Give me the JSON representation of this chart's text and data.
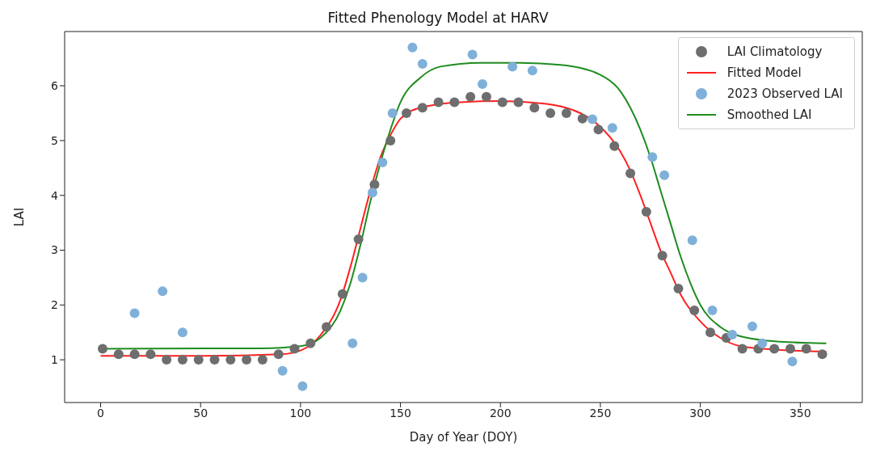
{
  "chart_data": {
    "type": "scatter",
    "title": "Fitted Phenology Model at HARV",
    "xlabel": "Day of Year (DOY)",
    "ylabel": "LAI",
    "xlim": [
      -18,
      381
    ],
    "xticks": [
      0,
      50,
      100,
      150,
      200,
      250,
      300,
      350
    ],
    "ylim": [
      0.22,
      6.99
    ],
    "yticks": [
      1,
      2,
      3,
      4,
      5,
      6
    ],
    "grid": false,
    "legend": "top right",
    "series": [
      {
        "name": "LAI Climatology",
        "marker": "circle",
        "color": "#6e6e6e",
        "x": [
          1,
          9,
          17,
          25,
          33,
          41,
          49,
          57,
          65,
          73,
          81,
          89,
          97,
          105,
          113,
          121,
          129,
          137,
          145,
          153,
          161,
          169,
          177,
          185,
          193,
          201,
          209,
          217,
          225,
          233,
          241,
          249,
          257,
          265,
          273,
          281,
          289,
          297,
          305,
          313,
          321,
          329,
          337,
          345,
          353,
          361
        ],
        "values": [
          1.2,
          1.1,
          1.1,
          1.1,
          1.0,
          1.0,
          1.0,
          1.0,
          1.0,
          1.0,
          1.0,
          1.1,
          1.2,
          1.3,
          1.6,
          2.2,
          3.2,
          4.2,
          5.0,
          5.5,
          5.6,
          5.7,
          5.7,
          5.8,
          5.8,
          5.7,
          5.7,
          5.6,
          5.5,
          5.5,
          5.4,
          5.2,
          4.9,
          4.4,
          3.7,
          2.9,
          2.3,
          1.9,
          1.5,
          1.4,
          1.2,
          1.2,
          1.2,
          1.2,
          1.2,
          1.1
        ]
      },
      {
        "name": "Fitted Model",
        "type": "line",
        "marker": "none",
        "color": "#ff2020",
        "x": [
          0,
          50,
          90,
          100,
          110,
          120,
          125,
          130,
          135,
          140,
          145,
          150,
          160,
          180,
          200,
          220,
          240,
          250,
          260,
          265,
          270,
          275,
          280,
          285,
          290,
          300,
          310,
          320,
          340,
          363
        ],
        "values": [
          1.07,
          1.07,
          1.1,
          1.17,
          1.45,
          2.1,
          2.7,
          3.4,
          4.1,
          4.7,
          5.1,
          5.4,
          5.6,
          5.7,
          5.72,
          5.68,
          5.5,
          5.25,
          4.8,
          4.45,
          4.0,
          3.5,
          3.0,
          2.6,
          2.2,
          1.7,
          1.4,
          1.25,
          1.18,
          1.15
        ]
      },
      {
        "name": "2023 Observed LAI",
        "marker": "circle",
        "color": "#7fb0d9",
        "x": [
          17,
          31,
          41,
          91,
          101,
          126,
          131,
          136,
          141,
          146,
          156,
          161,
          186,
          191,
          206,
          216,
          246,
          256,
          276,
          282,
          296,
          306,
          316,
          326,
          331,
          346
        ],
        "values": [
          1.85,
          2.25,
          1.5,
          0.8,
          0.52,
          1.3,
          2.5,
          4.05,
          4.6,
          5.5,
          6.7,
          6.4,
          6.57,
          6.03,
          6.35,
          6.28,
          5.39,
          5.23,
          4.7,
          4.37,
          3.18,
          1.9,
          1.46,
          1.61,
          1.3,
          0.97
        ]
      },
      {
        "name": "Smoothed LAI",
        "type": "line",
        "marker": "none",
        "color": "#1f8c1f",
        "x": [
          0,
          80,
          100,
          110,
          120,
          125,
          130,
          135,
          140,
          145,
          150,
          160,
          170,
          190,
          210,
          230,
          250,
          260,
          265,
          270,
          275,
          280,
          285,
          290,
          295,
          300,
          310,
          320,
          340,
          363
        ],
        "values": [
          1.2,
          1.21,
          1.25,
          1.4,
          1.9,
          2.4,
          3.1,
          3.9,
          4.6,
          5.2,
          5.7,
          6.15,
          6.35,
          6.42,
          6.42,
          6.38,
          6.2,
          5.9,
          5.6,
          5.2,
          4.7,
          4.1,
          3.5,
          2.9,
          2.4,
          2.0,
          1.6,
          1.43,
          1.33,
          1.3
        ]
      }
    ]
  }
}
